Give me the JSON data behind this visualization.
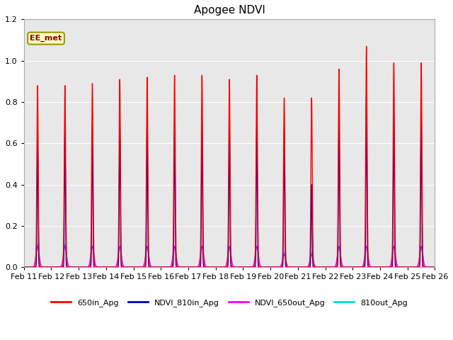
{
  "title": "Apogee NDVI",
  "ylim": [
    0,
    1.2
  ],
  "background_color": "#e8e8e8",
  "figure_color": "#ffffff",
  "annotation_text": "EE_met",
  "annotation_color": "#8b0000",
  "annotation_bg": "#ffffc0",
  "annotation_edge": "#999900",
  "legend_entries": [
    "650in_Apg",
    "NDVI_810in_Apg",
    "NDVI_650out_Apg",
    "810out_Apg"
  ],
  "legend_colors": [
    "#ff0000",
    "#0000cc",
    "#ff00ff",
    "#00dddd"
  ],
  "x_tick_labels": [
    "Feb 11",
    "Feb 12",
    "Feb 13",
    "Feb 14",
    "Feb 15",
    "Feb 16",
    "Feb 17",
    "Feb 18",
    "Feb 19",
    "Feb 20",
    "Feb 21",
    "Feb 22",
    "Feb 23",
    "Feb 24",
    "Feb 25",
    "Feb 26"
  ],
  "yticks": [
    0.0,
    0.2,
    0.4,
    0.6,
    0.8,
    1.0,
    1.2
  ],
  "day_peaks": {
    "650in": [
      0.88,
      0.88,
      0.89,
      0.91,
      0.92,
      0.93,
      0.93,
      0.91,
      0.93,
      0.82,
      0.82,
      0.96,
      1.07,
      0.99,
      0.99
    ],
    "810in": [
      0.66,
      0.66,
      0.68,
      0.7,
      0.7,
      0.7,
      0.7,
      0.7,
      0.7,
      0.66,
      0.4,
      0.73,
      0.83,
      0.75,
      0.75
    ],
    "650out": [
      0.1,
      0.1,
      0.1,
      0.1,
      0.1,
      0.1,
      0.1,
      0.1,
      0.1,
      0.06,
      0.06,
      0.1,
      0.1,
      0.1,
      0.1
    ],
    "810out": [
      0.11,
      0.11,
      0.1,
      0.1,
      0.1,
      0.1,
      0.1,
      0.1,
      0.1,
      0.07,
      0.07,
      0.1,
      0.1,
      0.1,
      0.1
    ]
  },
  "sigma_main_red": 0.025,
  "sigma_main_blue": 0.018,
  "sigma_out": 0.055,
  "pts_per_day": 500,
  "n_days": 15
}
